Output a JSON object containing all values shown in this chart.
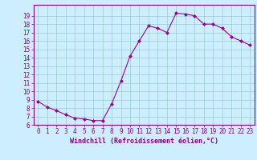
{
  "x": [
    0,
    1,
    2,
    3,
    4,
    5,
    6,
    7,
    8,
    9,
    10,
    11,
    12,
    13,
    14,
    15,
    16,
    17,
    18,
    19,
    20,
    21,
    22,
    23
  ],
  "y": [
    8.8,
    8.1,
    7.7,
    7.2,
    6.8,
    6.7,
    6.5,
    6.5,
    8.5,
    11.2,
    14.2,
    16.0,
    17.8,
    17.5,
    17.0,
    19.3,
    19.2,
    19.0,
    18.0,
    18.0,
    17.5,
    16.5,
    16.0,
    15.5
  ],
  "line_color": "#990099",
  "marker": "D",
  "marker_size": 2.0,
  "bg_color": "#cceeff",
  "grid_color": "#99cccc",
  "xlabel": "Windchill (Refroidissement éolien,°C)",
  "ylim": [
    6,
    20
  ],
  "xlim": [
    -0.5,
    23.5
  ],
  "yticks": [
    6,
    7,
    8,
    9,
    10,
    11,
    12,
    13,
    14,
    15,
    16,
    17,
    18,
    19
  ],
  "xticks": [
    0,
    1,
    2,
    3,
    4,
    5,
    6,
    7,
    8,
    9,
    10,
    11,
    12,
    13,
    14,
    15,
    16,
    17,
    18,
    19,
    20,
    21,
    22,
    23
  ],
  "tick_fontsize": 5.5,
  "xlabel_fontsize": 6.0,
  "label_color": "#880088",
  "spine_color": "#880088"
}
